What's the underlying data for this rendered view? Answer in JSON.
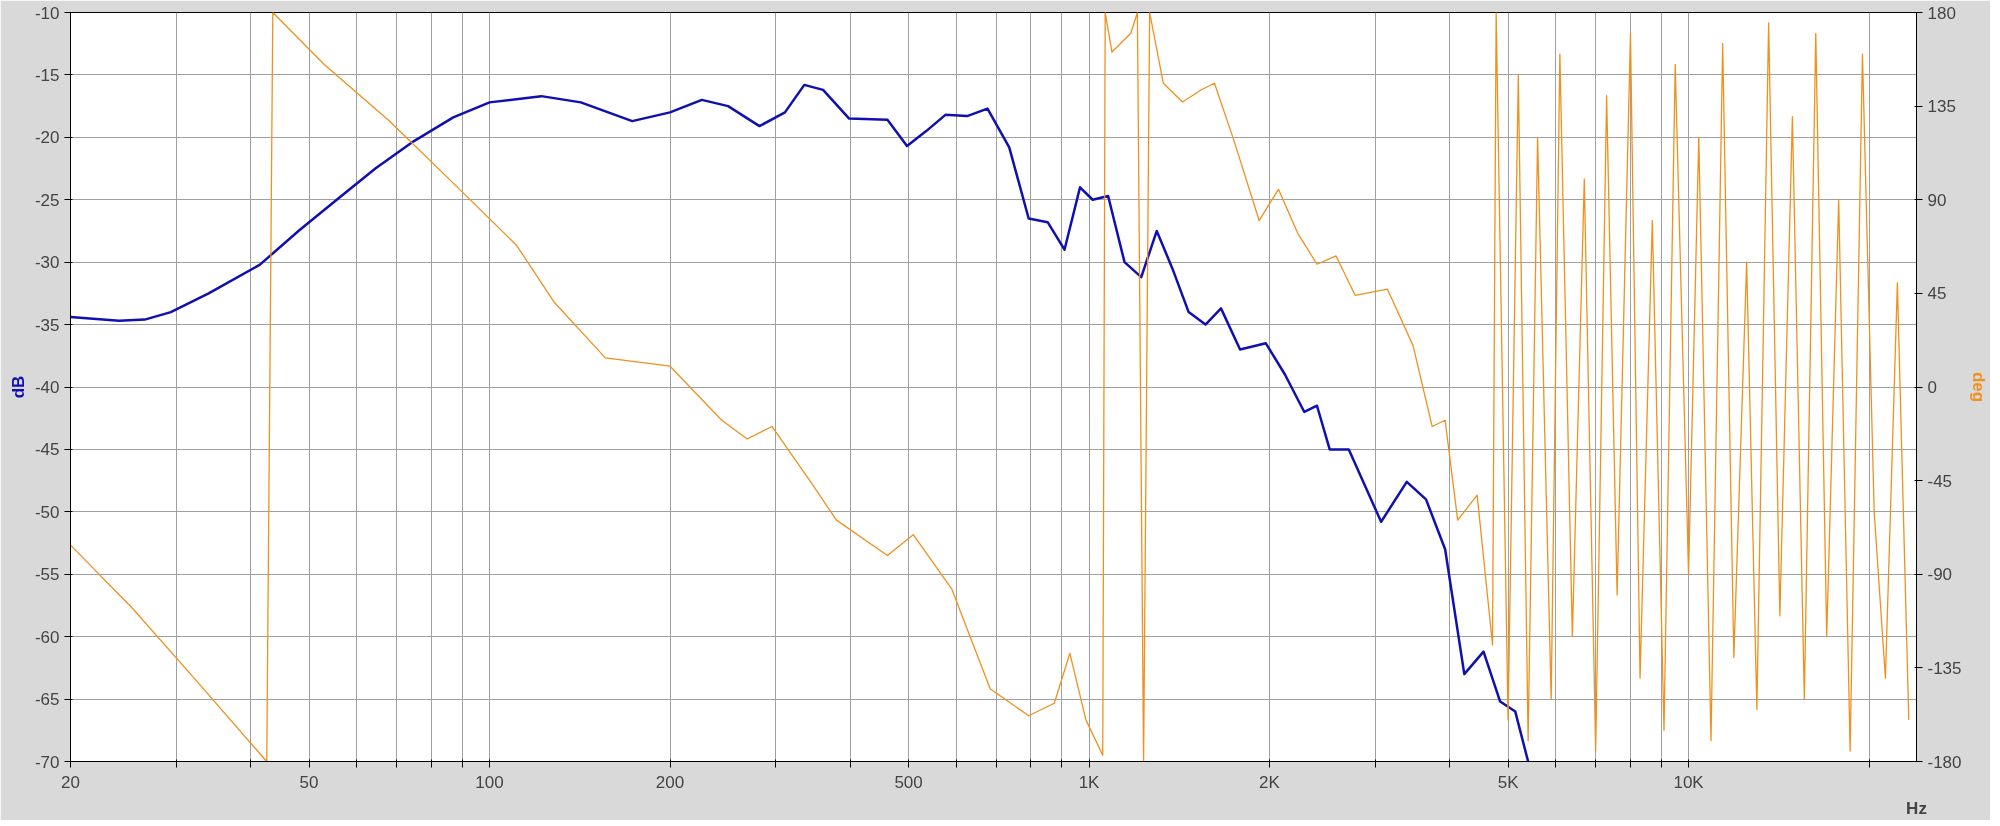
{
  "chart_data": {
    "type": "line",
    "xlabel": "Hz",
    "ylabel": "dB",
    "y2label": "deg",
    "log": "x",
    "grid": true,
    "xlim": [
      20,
      24000
    ],
    "xticks": [
      20,
      {
        "value": 30,
        "label": null
      },
      {
        "value": 40,
        "label": null
      },
      50,
      {
        "value": 60,
        "label": null
      },
      {
        "value": 70,
        "label": null
      },
      {
        "value": 80,
        "label": null
      },
      {
        "value": 90,
        "label": null
      },
      100,
      200,
      {
        "value": 300,
        "label": null
      },
      {
        "value": 400,
        "label": null
      },
      500,
      {
        "value": 600,
        "label": null
      },
      {
        "value": 700,
        "label": null
      },
      {
        "value": 800,
        "label": null
      },
      {
        "value": 900,
        "label": null
      },
      {
        "value": 1000,
        "label": "1K"
      },
      {
        "value": 2000,
        "label": "2K"
      },
      {
        "value": 3000,
        "label": null
      },
      {
        "value": 4000,
        "label": null
      },
      {
        "value": 5000,
        "label": "5K"
      },
      {
        "value": 6000,
        "label": null
      },
      {
        "value": 7000,
        "label": null
      },
      {
        "value": 8000,
        "label": null
      },
      {
        "value": 9000,
        "label": null
      },
      {
        "value": 10000,
        "label": "10K"
      },
      {
        "value": 20000,
        "label": null
      }
    ],
    "ylim": [
      -70,
      -10
    ],
    "yticks": [
      -70,
      -65,
      -60,
      -55,
      -50,
      -45,
      -40,
      -35,
      -30,
      -25,
      -20,
      -15,
      -10
    ],
    "y2lim": [
      -180,
      180
    ],
    "y2ticks": [
      -180,
      -135,
      -90,
      -45,
      0,
      45,
      90,
      135,
      180
    ],
    "series": [
      {
        "color": "#1010b0",
        "x": [
          20,
          24.1,
          26.6,
          29.4,
          34,
          41.4,
          48,
          55.6,
          64.5,
          74.8,
          87,
          100,
          122,
          142,
          173,
          200,
          226,
          250,
          282,
          311,
          335,
          360,
          398,
          461,
          497,
          535,
          576,
          626,
          677,
          736,
          793,
          853,
          910,
          966,
          1014,
          1076,
          1146,
          1222,
          1297,
          1377,
          1466,
          1564,
          1660,
          1786,
          1972,
          2122,
          2286,
          2400,
          2520,
          2712,
          3070,
          3388,
          3648,
          3926,
          4226,
          4550,
          4850,
          5140,
          5400
        ],
        "values": [
          -34.4,
          -34.7,
          -34.6,
          -34,
          -32.5,
          -30.2,
          -27.5,
          -25,
          -22.5,
          -20.3,
          -18.4,
          -17.2,
          -16.7,
          -17.2,
          -18.7,
          -18,
          -17,
          -17.5,
          -19.1,
          -18,
          -15.8,
          -16.2,
          -18.5,
          -18.6,
          -20.7,
          -19.5,
          -18.2,
          -18.3,
          -17.7,
          -20.8,
          -26.5,
          -26.8,
          -29,
          -24,
          -25,
          -24.7,
          -30,
          -31.2,
          -27.5,
          -30.5,
          -34,
          -35,
          -33.7,
          -37,
          -36.5,
          -39,
          -42,
          -41.5,
          -45,
          -45,
          -50.8,
          -47.6,
          -49,
          -53,
          -63,
          -61.2,
          -65.2,
          -66,
          -70
        ]
      },
      {
        "color": "#f0901e",
        "axis": "y2",
        "x": [
          20,
          25.3,
          32.4,
          42.5,
          43.5,
          53,
          68,
          87,
          111,
          128,
          156,
          200,
          244,
          269,
          296,
          344,
          379,
          461,
          509,
          590,
          684,
          793,
          875,
          929,
          988,
          1054,
          1064,
          1092,
          1174,
          1204,
          1233,
          1262,
          1330,
          1432,
          1542,
          1619,
          1742,
          1922,
          2070,
          2228,
          2400,
          2582,
          2780,
          3146,
          3470,
          3736,
          3926,
          4120,
          4440,
          4710,
          4776,
          5000,
          5200,
          5400,
          5600,
          5900,
          6100,
          6400,
          6700,
          7000,
          7300,
          7600,
          8000,
          8300,
          8700,
          9100,
          9500,
          10000,
          10400,
          10900,
          11400,
          11900,
          12500,
          13000,
          13600,
          14200,
          14900,
          15600,
          16300,
          17000,
          17800,
          18600,
          19500,
          20400,
          21300,
          22300,
          23300
        ],
        "values": [
          -76,
          -106,
          -141,
          -180,
          180,
          155,
          128,
          98,
          68,
          41,
          14,
          10,
          -16,
          -25,
          -19,
          -46,
          -64,
          -81,
          -71,
          -97,
          -145,
          -158,
          -152,
          -128,
          -160,
          -177,
          180,
          161,
          170,
          180,
          -180,
          180,
          146,
          137,
          143,
          146,
          119,
          80,
          95,
          74,
          59,
          63,
          44,
          47,
          20,
          -19,
          -16,
          -64,
          -52,
          -124,
          180,
          -160,
          150,
          -170,
          120,
          -150,
          160,
          -120,
          100,
          -175,
          140,
          -100,
          170,
          -140,
          80,
          -165,
          155,
          -90,
          120,
          -170,
          165,
          -130,
          60,
          -155,
          175,
          -110,
          130,
          -150,
          170,
          -120,
          90,
          -175,
          160,
          -60,
          -140,
          50,
          -160
        ]
      }
    ]
  }
}
